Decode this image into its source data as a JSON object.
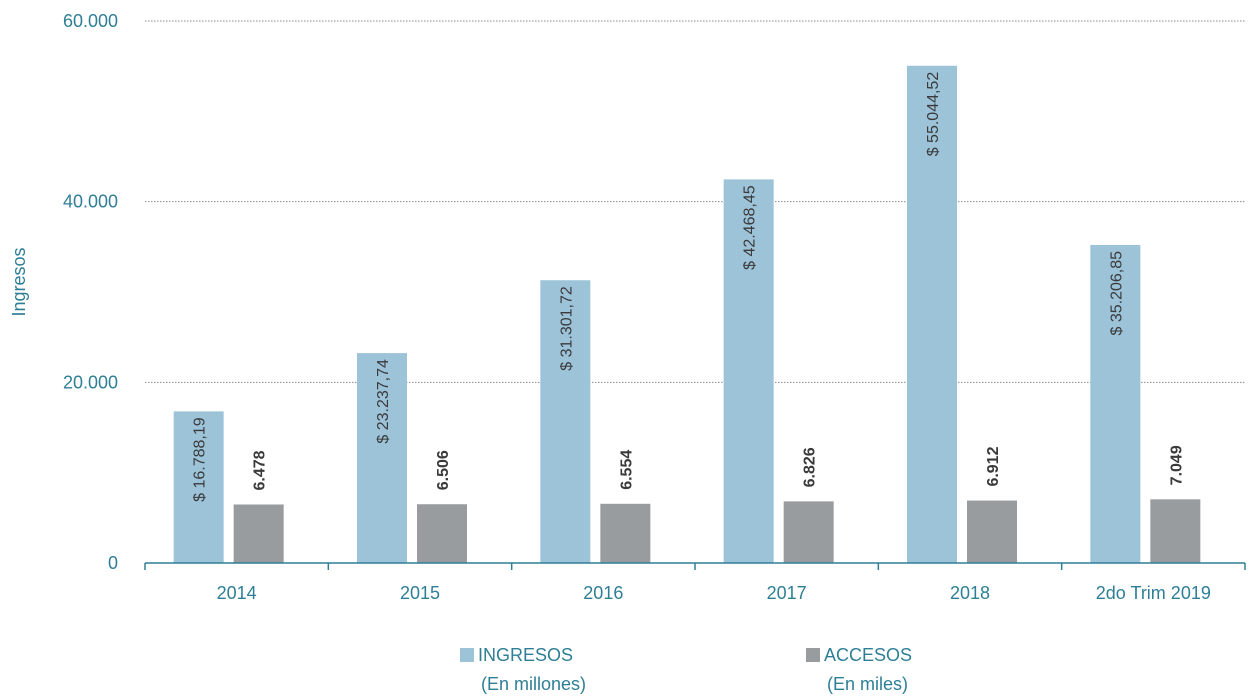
{
  "chart_data": {
    "type": "bar",
    "categories": [
      "2014",
      "2015",
      "2016",
      "2017",
      "2018",
      "2do Trim 2019"
    ],
    "series": [
      {
        "name": "INGRESOS",
        "name_sub": "(En millones)",
        "values": [
          16788.19,
          23237.74,
          31301.72,
          42468.45,
          55044.52,
          35206.85
        ],
        "labels": [
          "$ 16.788,19",
          "$ 23.237,74",
          "$ 31.301,72",
          "$ 42.468,45",
          "$ 55.044,52",
          "$ 35.206,85"
        ],
        "color": "#9dc3d9"
      },
      {
        "name": "ACCESOS",
        "name_sub": "(En miles)",
        "values": [
          6478,
          6506,
          6554,
          6826,
          6912,
          7049
        ],
        "labels": [
          "6.478",
          "6.506",
          "6.554",
          "6.826",
          "6.912",
          "7.049"
        ],
        "color": "#999c9f"
      }
    ],
    "ylabel": "Ingresos",
    "ylim": [
      0,
      60000
    ],
    "yticks": [
      0,
      20000,
      40000,
      60000
    ],
    "ytick_labels": [
      "0",
      "20.000",
      "40.000",
      "60.000"
    ],
    "grid": true,
    "legend_position": "bottom",
    "axis_color": "#2e7f96",
    "grid_color": "#8a8a8a"
  }
}
